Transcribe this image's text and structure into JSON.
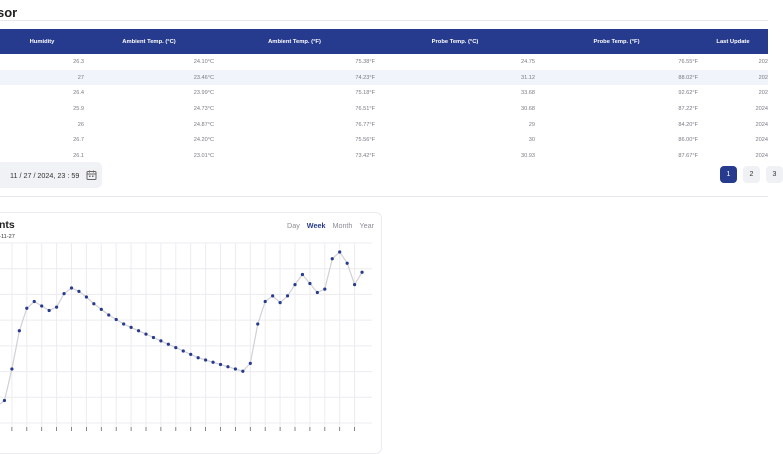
{
  "header": {
    "title": "sor"
  },
  "table": {
    "columns": [
      "Humidity",
      "Ambient Temp. (°C)",
      "Ambient Temp. (°F)",
      "Probe Temp. (°C)",
      "Probe Temp. (°F)",
      "Last Update"
    ],
    "rows": [
      [
        "26.3",
        "24.10°C",
        "75.38°F",
        "24.75",
        "76.55°F",
        "202"
      ],
      [
        "27",
        "23.46°C",
        "74.23°F",
        "31.12",
        "88.02°F",
        "202"
      ],
      [
        "26.4",
        "23.99°C",
        "75.18°F",
        "33.68",
        "92.62°F",
        "202"
      ],
      [
        "25.9",
        "24.73°C",
        "76.51°F",
        "30.68",
        "87.22°F",
        "2024"
      ],
      [
        "26",
        "24.87°C",
        "76.77°F",
        "29",
        "84.20°F",
        "2024"
      ],
      [
        "26.7",
        "24.20°C",
        "75.56°F",
        "30",
        "86.00°F",
        "2024"
      ],
      [
        "26.1",
        "23.01°C",
        "73.42°F",
        "30.93",
        "87.67°F",
        "2024"
      ]
    ]
  },
  "filter": {
    "date_value": "11 / 27 / 2024, 23 : 59",
    "calendar_icon": "calendar-icon"
  },
  "pagination": {
    "pages": [
      "1",
      "2",
      "3"
    ],
    "active": "1"
  },
  "chart_panel": {
    "title": "nts",
    "date": "4-11-27",
    "ranges": [
      "Day",
      "Week",
      "Month",
      "Year"
    ],
    "active_range": "Week"
  },
  "chart_data": {
    "type": "line",
    "title": "",
    "xlabel": "",
    "ylabel": "",
    "grid": true,
    "point_color": "#273b8e",
    "line_color": "#d0d0d6",
    "values": [
      20.5,
      21.0,
      23.8,
      27.2,
      29.2,
      29.8,
      29.4,
      29.0,
      29.3,
      30.5,
      31.0,
      30.7,
      30.2,
      29.6,
      29.1,
      28.6,
      28.2,
      27.8,
      27.5,
      27.2,
      26.9,
      26.6,
      26.3,
      26.0,
      25.7,
      25.4,
      25.1,
      24.8,
      24.6,
      24.4,
      24.2,
      24.0,
      23.8,
      23.6,
      24.3,
      27.8,
      29.8,
      30.3,
      29.7,
      30.3,
      31.3,
      32.2,
      31.4,
      30.6,
      30.9,
      33.6,
      34.2,
      33.2,
      31.3,
      32.4
    ]
  }
}
